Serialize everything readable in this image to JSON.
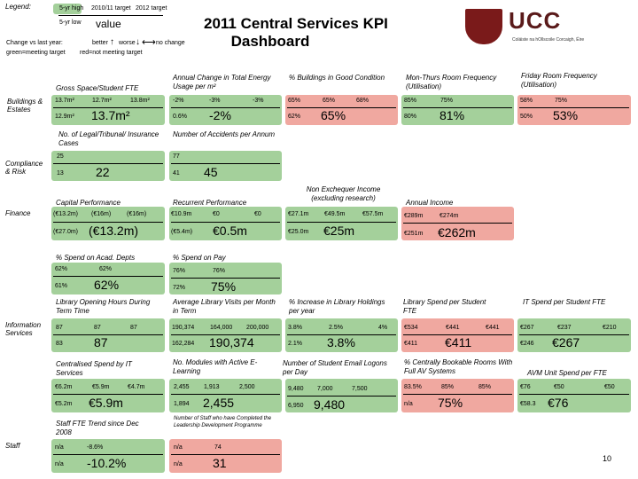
{
  "legend": {
    "title": "Legend:",
    "row1": [
      "5-yr high",
      "2010/11 target",
      "2012 target"
    ],
    "row2_left": "5-yr low",
    "row2_value": "value",
    "change_label": "Change vs last year:",
    "change_items": [
      "better",
      "worse",
      "no change"
    ],
    "green_label": "green=meeting target",
    "red_label": "red=not meeting target"
  },
  "title": {
    "line1": "2011 Central Services KPI",
    "line2": "Dashboard"
  },
  "logo": {
    "text": "UCC",
    "sub": "Coláiste na hOllscoile Corcaigh, Éire"
  },
  "categories": {
    "buildings": "Buildings & Estates",
    "compliance": "Compliance & Risk",
    "finance": "Finance",
    "it": "Information Services",
    "staff": "Staff"
  },
  "kpis": {
    "gfa": {
      "title": "Gross Space/Student FTE",
      "high": "13.7m²",
      "t1": "12.7m²",
      "t2": "13.8m²",
      "low": "12.9m²",
      "value": "13.7m²"
    },
    "energy": {
      "title": "Annual Change in Total Energy Usage per m²",
      "high": "-2%",
      "t1": "-3%",
      "t2": "-3%",
      "low": "0.6%",
      "value": "-2%"
    },
    "bldg": {
      "title": "% Buildings in Good Condition",
      "high": "65%",
      "t1": "65%",
      "t2": "68%",
      "low": "62%",
      "value": "65%"
    },
    "monthurs": {
      "title": "Mon-Thurs Room Frequency (Utilisation)",
      "high": "85%",
      "t1": "75%",
      "low": "80%",
      "value": "81%"
    },
    "friday": {
      "title": "Friday Room Frequency (Utilisation)",
      "high": "58%",
      "t1": "75%",
      "low": "50%",
      "value": "53%"
    },
    "legal": {
      "title": "No. of Legal/Tribunal/ Insurance Cases",
      "high": "25",
      "low": "13",
      "value": "22"
    },
    "accidents": {
      "title": "Number of Accidents per Annum",
      "high": "77",
      "low": "41",
      "value": "45"
    },
    "capital": {
      "title": "Capital Performance",
      "high": "(€13.2m)",
      "t1": "(€16m)",
      "t2": "(€16m)",
      "low": "(€27.0m)",
      "value": "(€13.2m)"
    },
    "recurrent": {
      "title": "Recurrent Performance",
      "high": "€10.9m",
      "t1": "€0",
      "t2": "€0",
      "low": "(€5.4m)",
      "value": "€0.5m"
    },
    "nonexch": {
      "title": "Non Exchequer Income (excluding research)",
      "high": "€27.1m",
      "t1": "€49.5m",
      "t2": "€57.5m",
      "low": "€25.0m",
      "value": "€25m"
    },
    "income": {
      "title": "Annual Income",
      "high": "€289m",
      "t1": "€274m",
      "low": "€251m",
      "value": "€262m"
    },
    "acad": {
      "title": "% Spend on Acad. Depts",
      "high": "62%",
      "t1": "62%",
      "low": "61%",
      "value": "62%"
    },
    "pay": {
      "title": "% Spend on Pay",
      "high": "76%",
      "t1": "76%",
      "low": "72%",
      "value": "75%"
    },
    "libhours": {
      "title": "Library Opening Hours During Term Time",
      "high": "87",
      "t1": "87",
      "t2": "87",
      "low": "83",
      "value": "87"
    },
    "libvisits": {
      "title": "Average Library Visits per Month in Term",
      "high": "190,374",
      "t1": "164,000",
      "t2": "200,000",
      "low": "162,284",
      "value": "190,374"
    },
    "libhold": {
      "title": "% Increase in Library Holdings per year",
      "high": "3.8%",
      "t1": "2.5%",
      "t2": "4%",
      "low": "2.1%",
      "value": "3.8%"
    },
    "libspend": {
      "title": "Library Spend per Student FTE",
      "high": "€534",
      "t1": "€441",
      "t2": "€441",
      "low": "€411",
      "value": "€411"
    },
    "itspend": {
      "title": "IT Spend per Student FTE",
      "high": "€267",
      "t1": "€237",
      "t2": "€210",
      "low": "€246",
      "value": "€267"
    },
    "centralised": {
      "title": "Centralised Spend by IT Services",
      "high": "€6.2m",
      "t1": "€5.9m",
      "t2": "€4.7m",
      "low": "€5.2m",
      "value": "€5.9m"
    },
    "modules": {
      "title": "No. Modules with Active E-Learning",
      "high": "2,455",
      "t1": "1,913",
      "t2": "2,500",
      "low": "1,894",
      "value": "2,455"
    },
    "logons": {
      "title": "Number of Student Email Logons per Day",
      "high": "9,480",
      "t1": "7,000",
      "t2": "7,500",
      "low": "6,950",
      "value": "9,480"
    },
    "bookable": {
      "title": "% Centrally Bookable Rooms With Full AV Systems",
      "high": "83.5%",
      "t1": "85%",
      "t2": "85%",
      "low": "n/a",
      "value": "75%"
    },
    "avm": {
      "title": "AVM Unit Spend per FTE",
      "high": "€76",
      "t1": "€50",
      "t2": "€50",
      "low": "€58.3",
      "value": "€76"
    },
    "staffte": {
      "title": "Staff FTE Trend since Dec 2008",
      "high": "n/a",
      "t1": "-8.6%",
      "low": "n/a",
      "value": "-10.2%"
    },
    "leadership": {
      "title": "Number of Staff who have Completed the Leadership Development Programme",
      "high": "n/a",
      "t1": "74",
      "low": "n/a",
      "value": "31"
    }
  },
  "page_number": "10",
  "colors": {
    "green": "#a4d09b",
    "red": "#f0a8a0",
    "logo": "#7a1a1a"
  }
}
